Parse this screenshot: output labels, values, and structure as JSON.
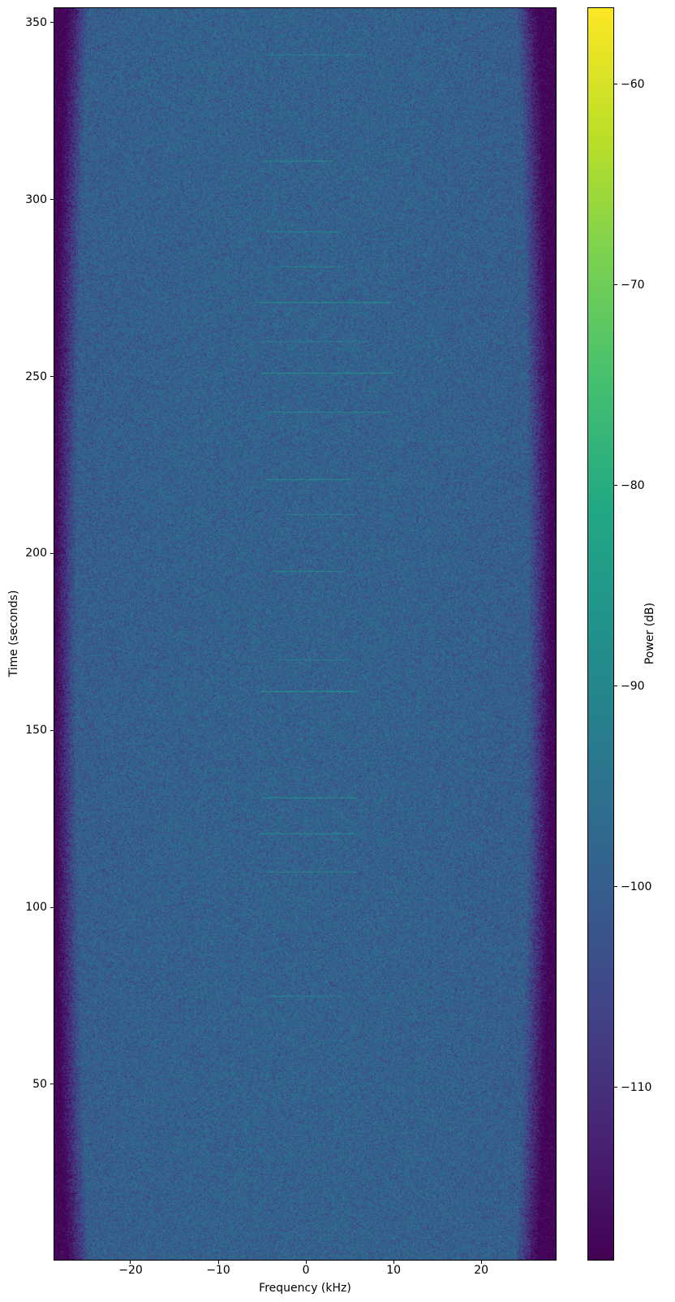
{
  "chart_data": {
    "type": "heatmap",
    "subtype": "spectrogram",
    "title": "",
    "xlabel": "Frequency (kHz)",
    "ylabel": "Time (seconds)",
    "colorbar_label": "Power (dB)",
    "colormap": "viridis",
    "grid": false,
    "legend": "none",
    "xlim": [
      -28.7,
      28.5
    ],
    "ylim": [
      0.4,
      354.1
    ],
    "clim": [
      -118.6,
      -56.2
    ],
    "x_ticks": [
      -20,
      -10,
      0,
      10,
      20
    ],
    "y_ticks": [
      50,
      100,
      150,
      200,
      250,
      300,
      350
    ],
    "colorbar_ticks": [
      -60,
      -70,
      -80,
      -90,
      -100,
      -110
    ],
    "noise_floor_db": -118.0,
    "passband_level_db": -97.3,
    "band_model": {
      "left_halfwidth_khz": {
        "ends": 24.6,
        "mid": 26.2
      },
      "right_halfwidth_khz": {
        "ends": 23.8,
        "mid": 25.4
      },
      "rolloff_db_per_khz": 7.5,
      "shape_exponent": 0.7,
      "speckle_db_clip": [
        -11,
        6.5
      ]
    },
    "tone_events": [
      {
        "time": 341,
        "f_start": -4.5,
        "f_end": 6.8,
        "power_db": -91
      },
      {
        "time": 311,
        "f_start": -4.8,
        "f_end": 3.0,
        "power_db": -88
      },
      {
        "time": 291,
        "f_start": -4.6,
        "f_end": 4.0,
        "power_db": -90
      },
      {
        "time": 281,
        "f_start": -3.0,
        "f_end": 4.2,
        "power_db": -90.5
      },
      {
        "time": 271,
        "f_start": -5.5,
        "f_end": 9.8,
        "power_db": -87.5
      },
      {
        "time": 260,
        "f_start": -5.0,
        "f_end": 7.0,
        "power_db": -91.5
      },
      {
        "time": 251,
        "f_start": -5.1,
        "f_end": 9.8,
        "power_db": -87
      },
      {
        "time": 240,
        "f_start": -4.4,
        "f_end": 9.5,
        "power_db": -90
      },
      {
        "time": 221,
        "f_start": -4.6,
        "f_end": 5.2,
        "power_db": -88
      },
      {
        "time": 211,
        "f_start": -2.2,
        "f_end": 5.8,
        "power_db": -90
      },
      {
        "time": 195,
        "f_start": -3.9,
        "f_end": 4.4,
        "power_db": -89
      },
      {
        "time": 170,
        "f_start": -3.4,
        "f_end": 4.9,
        "power_db": -90.5
      },
      {
        "time": 161,
        "f_start": -5.1,
        "f_end": 5.8,
        "power_db": -85
      },
      {
        "time": 131,
        "f_start": -5.1,
        "f_end": 5.8,
        "power_db": -88
      },
      {
        "time": 121,
        "f_start": -5.3,
        "f_end": 5.8,
        "power_db": -89
      },
      {
        "time": 110,
        "f_start": -4.4,
        "f_end": 5.8,
        "power_db": -90
      },
      {
        "time": 75,
        "f_start": -4.0,
        "f_end": 4.2,
        "power_db": -91
      }
    ],
    "colors": {
      "background": "#ffffff",
      "axis": "#000000",
      "floor": "#440154",
      "passband": "#31688e",
      "colorbar_top": "#fde725"
    }
  }
}
